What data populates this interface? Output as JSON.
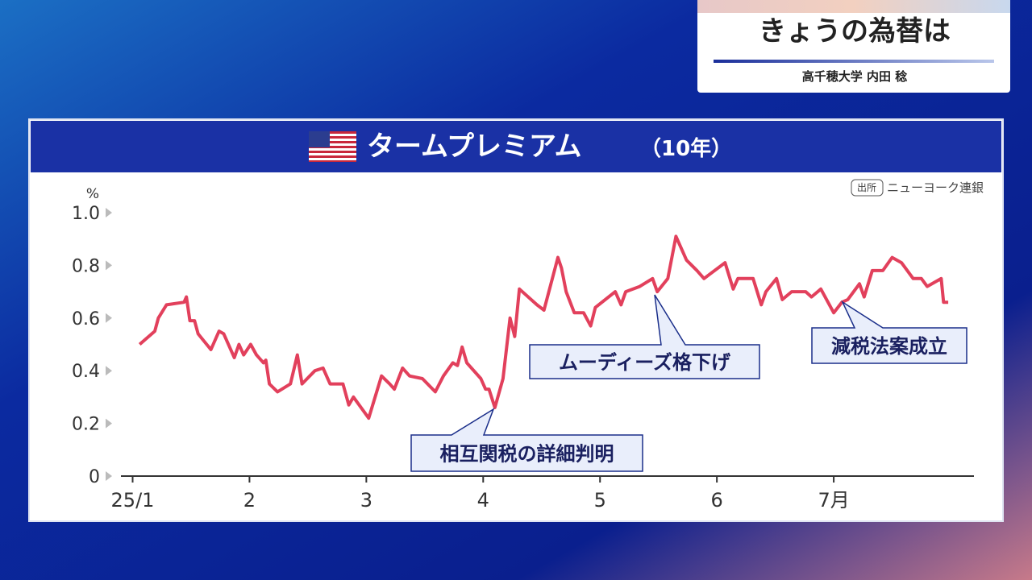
{
  "header": {
    "title": "きょうの為替は",
    "byline": "高千穂大学 内田 稔"
  },
  "chart_data": {
    "type": "line",
    "title": "タームプレミアム",
    "subtitle": "（10年）",
    "y_label": "%",
    "source_tag": "出所",
    "source": "ニューヨーク連銀",
    "color": "#e2405c",
    "xlim": [
      0.9,
      8.2
    ],
    "xticks": [
      {
        "value": 1,
        "label": "25/1"
      },
      2,
      3,
      4,
      5,
      6,
      {
        "value": 7,
        "label": "7月"
      }
    ],
    "ylim": [
      0,
      1.0
    ],
    "yticks": [
      0,
      0.2,
      0.4,
      0.6,
      0.8,
      {
        "value": 1,
        "label": "1.0"
      }
    ],
    "x": [
      1.06,
      1.19,
      1.22,
      1.29,
      1.44,
      1.46,
      1.49,
      1.53,
      1.56,
      1.67,
      1.74,
      1.78,
      1.87,
      1.91,
      1.95,
      2.01,
      2.06,
      2.12,
      2.14,
      2.17,
      2.24,
      2.35,
      2.41,
      2.45,
      2.56,
      2.63,
      2.69,
      2.8,
      2.85,
      2.89,
      3.02,
      3.13,
      3.2,
      3.24,
      3.31,
      3.37,
      3.48,
      3.59,
      3.66,
      3.74,
      3.78,
      3.82,
      3.86,
      3.98,
      4.02,
      4.05,
      4.1,
      4.17,
      4.23,
      4.27,
      4.31,
      4.46,
      4.52,
      4.64,
      4.67,
      4.71,
      4.78,
      4.86,
      4.92,
      4.96,
      5.13,
      5.18,
      5.22,
      5.34,
      5.45,
      5.49,
      5.58,
      5.65,
      5.74,
      5.83,
      5.89,
      5.95,
      6.07,
      6.14,
      6.18,
      6.31,
      6.38,
      6.42,
      6.51,
      6.56,
      6.64,
      6.76,
      6.81,
      6.89,
      7.0,
      7.07,
      7.12,
      7.22,
      7.26,
      7.33,
      7.42,
      7.5,
      7.58,
      7.68,
      7.75,
      7.8,
      7.92,
      7.94,
      7.98
    ],
    "values": [
      0.5,
      0.55,
      0.6,
      0.65,
      0.66,
      0.68,
      0.59,
      0.59,
      0.54,
      0.48,
      0.55,
      0.54,
      0.45,
      0.5,
      0.46,
      0.5,
      0.46,
      0.43,
      0.44,
      0.35,
      0.32,
      0.35,
      0.46,
      0.35,
      0.4,
      0.41,
      0.35,
      0.35,
      0.27,
      0.3,
      0.22,
      0.38,
      0.35,
      0.33,
      0.41,
      0.38,
      0.37,
      0.32,
      0.38,
      0.43,
      0.42,
      0.49,
      0.43,
      0.37,
      0.33,
      0.33,
      0.26,
      0.37,
      0.6,
      0.53,
      0.71,
      0.65,
      0.63,
      0.83,
      0.79,
      0.7,
      0.62,
      0.62,
      0.57,
      0.64,
      0.7,
      0.65,
      0.7,
      0.72,
      0.75,
      0.7,
      0.75,
      0.91,
      0.82,
      0.78,
      0.75,
      0.77,
      0.81,
      0.71,
      0.75,
      0.75,
      0.65,
      0.7,
      0.75,
      0.67,
      0.7,
      0.7,
      0.68,
      0.71,
      0.62,
      0.66,
      0.67,
      0.73,
      0.68,
      0.78,
      0.78,
      0.83,
      0.81,
      0.75,
      0.75,
      0.72,
      0.75,
      0.66,
      0.66
    ],
    "annotations": [
      {
        "text": "相互関税の詳細判明"
      },
      {
        "text": "ムーディーズ格下げ"
      },
      {
        "text": "減税法案成立"
      }
    ]
  }
}
